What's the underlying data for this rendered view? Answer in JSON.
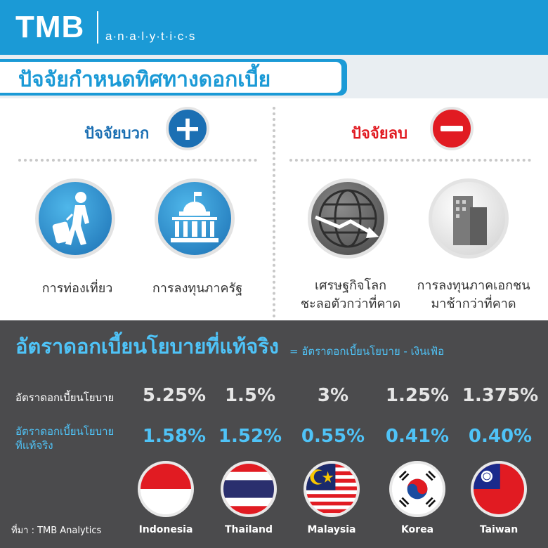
{
  "header": {
    "brand": "TMB",
    "sub": "a·n·a·l·y·t·i·c·s"
  },
  "title": "ปัจจัยกำหนดทิศทางดอกเบี้ย",
  "positive": {
    "label": "ปัจจัยบวก",
    "badge": "+",
    "items": [
      {
        "caption": "การท่องเที่ยว",
        "icon": "traveler-icon"
      },
      {
        "caption": "การลงทุนภาครัฐ",
        "icon": "government-building-icon"
      }
    ]
  },
  "negative": {
    "label": "ปัจจัยลบ",
    "items": [
      {
        "caption_line1": "เศรษฐกิจโลก",
        "caption_line2": "ชะลอตัวกว่าที่คาด",
        "icon": "globe-downtrend-icon"
      },
      {
        "caption_line1": "การลงทุนภาคเอกชน",
        "caption_line2": "มาช้ากว่าที่คาด",
        "icon": "buildings-icon"
      }
    ]
  },
  "real_rate": {
    "title": "อัตราดอกเบี้ยนโยบายที่แท้จริง",
    "formula": "= อัตราดอกเบี้ยนโยบาย - เงินเฟ้อ",
    "policy_label": "อัตราดอกเบี้ยนโยบาย",
    "real_label_line1": "อัตราดอกเบี้ยนโยบาย",
    "real_label_line2": "ที่แท้จริง"
  },
  "countries": [
    {
      "name": "Indonesia",
      "policy": "5.25%",
      "real": "1.58%"
    },
    {
      "name": "Thailand",
      "policy": "1.5%",
      "real": "1.52%"
    },
    {
      "name": "Malaysia",
      "policy": "3%",
      "real": "0.55%"
    },
    {
      "name": "Korea",
      "policy": "1.25%",
      "real": "0.41%"
    },
    {
      "name": "Taiwan",
      "policy": "1.375%",
      "real": "0.40%"
    }
  ],
  "source": "ที่มา : TMB Analytics",
  "colors": {
    "brand_blue": "#1b9ad6",
    "positive_blue": "#1b6fb3",
    "negative_red": "#e11b22",
    "panel_gray": "#4b4b4d",
    "accent_cyan": "#4fc3f7"
  }
}
